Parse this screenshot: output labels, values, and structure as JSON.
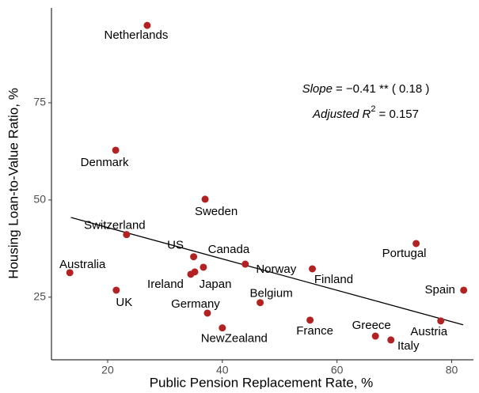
{
  "chart_data": {
    "type": "scatter",
    "xlabel": "Public Pension Replacement Rate, %",
    "ylabel": "Housing Loan-to-Value Ratio, %",
    "labels": [
      "Netherlands",
      "Denmark",
      "Sweden",
      "Switzerland",
      "US",
      "Canada",
      "Ireland",
      "Japan",
      "Australia",
      "UK",
      "Germany",
      "NewZealand",
      "Norway",
      "Belgium",
      "Finland",
      "France",
      "Portugal",
      "Spain",
      "Greece",
      "Italy",
      "Austria"
    ],
    "x": [
      26.9,
      21.4,
      37.0,
      23.3,
      35.0,
      36.7,
      34.5,
      35.2,
      13.4,
      21.5,
      37.4,
      40.0,
      44.0,
      46.6,
      55.7,
      55.3,
      73.8,
      82.1,
      66.7,
      69.4,
      78.1
    ],
    "y": [
      94.9,
      62.8,
      50.2,
      41.1,
      35.4,
      32.7,
      30.9,
      31.5,
      31.3,
      26.8,
      20.9,
      17.1,
      33.5,
      23.6,
      32.3,
      19.1,
      38.8,
      26.8,
      15.0,
      14.0,
      18.9
    ],
    "color": "#b22222",
    "fit": {
      "x": [
        13.6,
        82.0
      ],
      "y": [
        45.5,
        17.9
      ]
    },
    "annotations": [
      [
        "Slope",
        "= −0.41 ** ( 0.18 )"
      ],
      [
        "Adjusted R",
        "2",
        "= 0.157"
      ]
    ],
    "xlim": [
      10.2,
      83.8
    ],
    "ylim": [
      8.9,
      99.4
    ],
    "xticks": [
      20,
      40,
      60,
      80
    ],
    "yticks": [
      25,
      50,
      75
    ],
    "grid": false
  }
}
